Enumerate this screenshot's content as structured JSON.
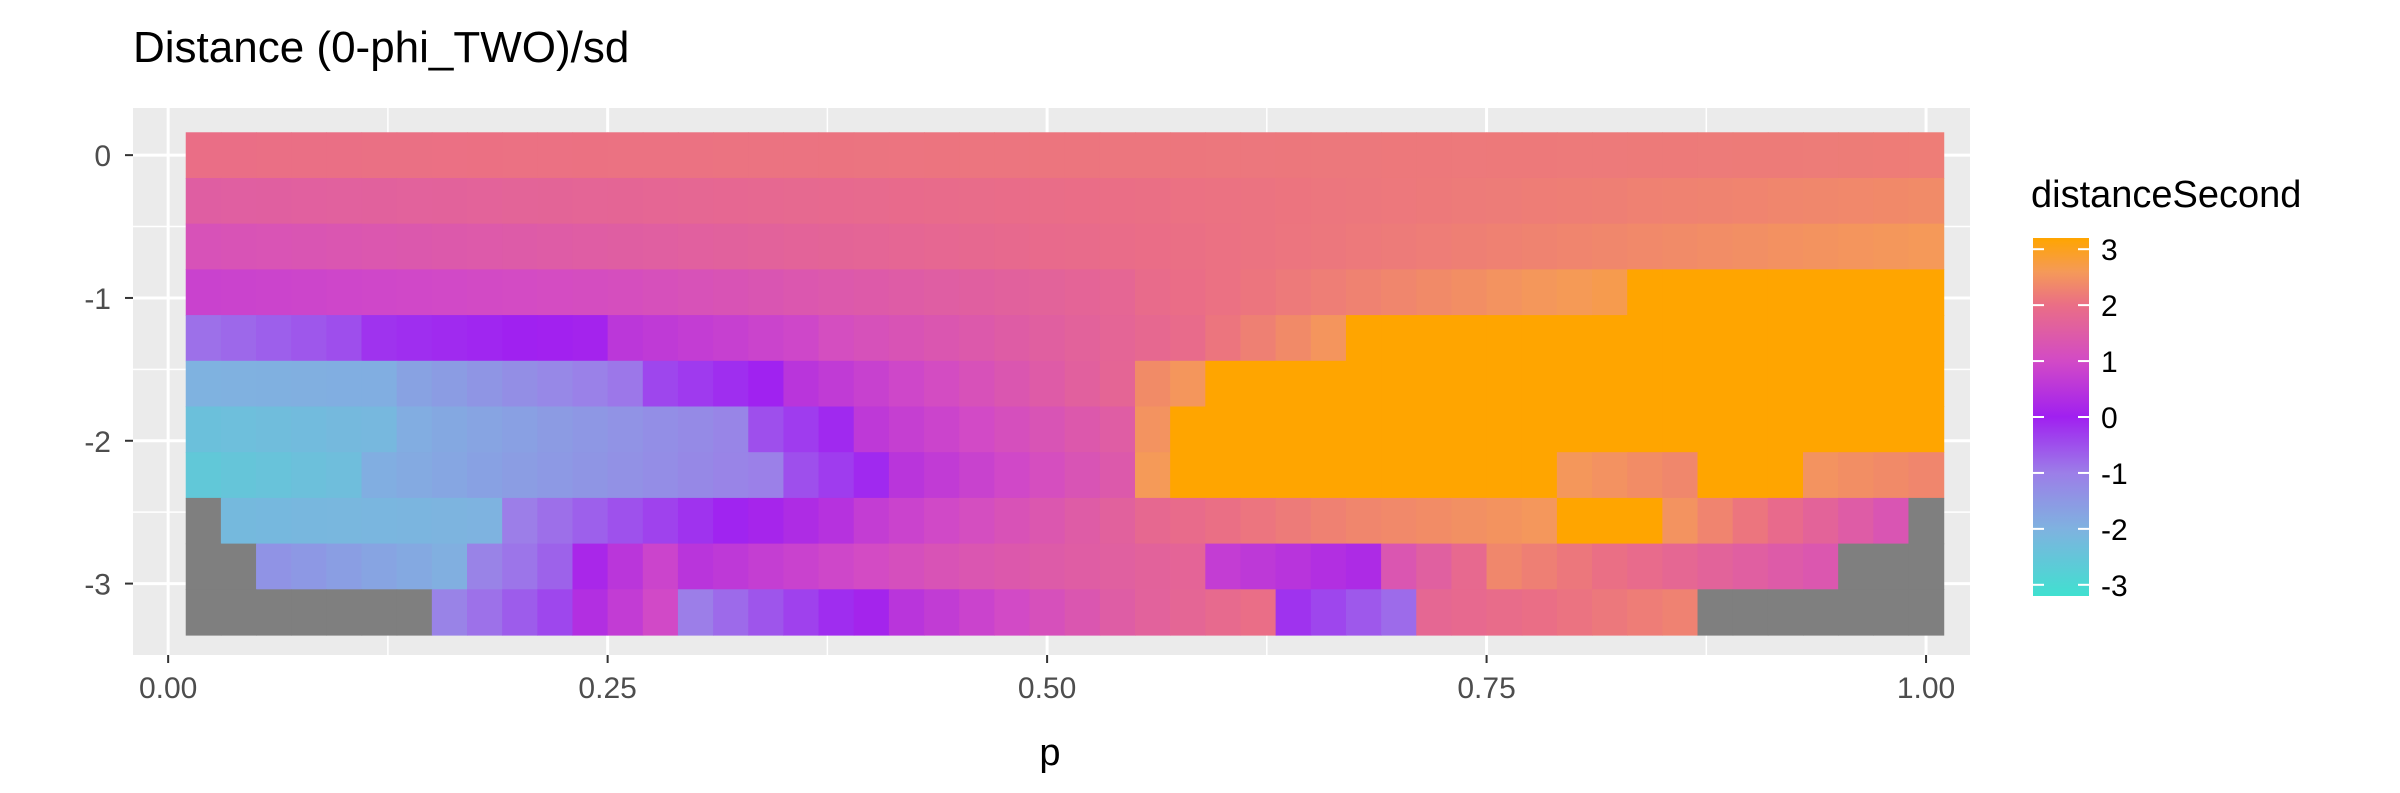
{
  "chart_data": {
    "type": "heatmap",
    "title": "Distance (0-phi_TWO)/sd",
    "xlabel": "p",
    "ylabel": "",
    "xlim": [
      -0.02,
      1.025
    ],
    "ylim": [
      -3.5,
      0.33
    ],
    "x_ticks": [
      0.0,
      0.25,
      0.5,
      0.75,
      1.0
    ],
    "x_tick_labels": [
      "0.00",
      "0.25",
      "0.50",
      "0.75",
      "1.00"
    ],
    "y_ticks": [
      0,
      -1,
      -2,
      -3
    ],
    "y_tick_labels": [
      "0",
      "-1",
      "-2",
      "-3"
    ],
    "grid": true,
    "legend": {
      "title": "distanceSecond",
      "position": "right",
      "limits": [
        -3.2,
        3.2
      ],
      "breaks": [
        3,
        2,
        1,
        0,
        -1,
        -2,
        -3
      ],
      "break_labels": [
        "3",
        "2",
        "1",
        "0",
        "-1",
        "-2",
        "-3"
      ],
      "colors": [
        {
          "v": -3.2,
          "color": "#40e0d0"
        },
        {
          "v": -2.0,
          "color": "#7fb2e0"
        },
        {
          "v": -1.0,
          "color": "#9c7ee8"
        },
        {
          "v": 0.0,
          "color": "#a020f0"
        },
        {
          "v": 1.0,
          "color": "#d24ac6"
        },
        {
          "v": 2.0,
          "color": "#ea6e86"
        },
        {
          "v": 2.6,
          "color": "#f59a58"
        },
        {
          "v": 3.2,
          "color": "#ffa500"
        }
      ],
      "na_color": "#7f7f7f"
    },
    "rows": [
      {
        "y": 0.0,
        "segments": [
          [
            0.01,
            1.01,
            2.0,
            2.2
          ]
        ]
      },
      {
        "y": -0.32,
        "segments": [
          [
            0.01,
            1.01,
            1.55,
            2.4
          ]
        ]
      },
      {
        "y": -0.64,
        "segments": [
          [
            0.01,
            0.5,
            1.2,
            1.9
          ],
          [
            0.5,
            1.01,
            1.9,
            2.6
          ]
        ]
      },
      {
        "y": -0.96,
        "segments": [
          [
            0.01,
            0.25,
            0.8,
            1.1
          ],
          [
            0.25,
            0.55,
            1.1,
            1.8
          ],
          [
            0.55,
            0.83,
            1.9,
            2.7
          ],
          [
            0.83,
            1.01,
            3.2,
            3.2
          ]
        ]
      },
      {
        "y": -1.28,
        "segments": [
          [
            0.01,
            0.12,
            -0.9,
            -0.4
          ],
          [
            0.12,
            0.25,
            -0.2,
            0.1
          ],
          [
            0.25,
            0.38,
            0.5,
            1.0
          ],
          [
            0.38,
            0.6,
            1.1,
            2.0
          ],
          [
            0.6,
            0.67,
            2.1,
            2.6
          ],
          [
            0.67,
            1.01,
            3.2,
            3.2
          ]
        ]
      },
      {
        "y": -1.6,
        "segments": [
          [
            0.01,
            0.14,
            -2.0,
            -1.9
          ],
          [
            0.14,
            0.28,
            -1.7,
            -0.8
          ],
          [
            0.28,
            0.36,
            -0.4,
            0.1
          ],
          [
            0.36,
            0.56,
            0.5,
            1.9
          ],
          [
            0.56,
            0.6,
            2.4,
            2.7
          ],
          [
            0.6,
            1.01,
            3.2,
            3.2
          ]
        ]
      },
      {
        "y": -1.92,
        "segments": [
          [
            0.01,
            0.14,
            -2.4,
            -2.1
          ],
          [
            0.14,
            0.33,
            -1.9,
            -1.1
          ],
          [
            0.33,
            0.4,
            -0.6,
            0.1
          ],
          [
            0.4,
            0.55,
            0.6,
            1.6
          ],
          [
            0.55,
            0.57,
            2.5,
            2.5
          ],
          [
            0.57,
            1.01,
            3.2,
            3.2
          ]
        ]
      },
      {
        "y": -2.24,
        "segments": [
          [
            0.01,
            0.1,
            -2.6,
            -2.3
          ],
          [
            0.1,
            0.35,
            -2.0,
            -1.0
          ],
          [
            0.35,
            0.42,
            -0.6,
            0.1
          ],
          [
            0.42,
            0.55,
            0.5,
            1.5
          ],
          [
            0.55,
            0.58,
            2.6,
            2.6
          ],
          [
            0.58,
            0.79,
            3.2,
            3.2
          ],
          [
            0.79,
            0.87,
            2.6,
            2.3
          ],
          [
            0.87,
            0.94,
            3.2,
            3.2
          ],
          [
            0.94,
            1.01,
            2.5,
            2.3
          ]
        ]
      },
      {
        "y": -2.56,
        "segments": [
          [
            0.01,
            0.03,
            null,
            null
          ],
          [
            0.03,
            0.2,
            -2.2,
            -2.0
          ],
          [
            0.2,
            0.4,
            -1.0,
            0.6
          ],
          [
            0.4,
            0.55,
            0.7,
            1.7
          ],
          [
            0.55,
            0.67,
            1.8,
            2.3
          ],
          [
            0.67,
            0.8,
            2.3,
            2.6
          ],
          [
            0.8,
            0.86,
            3.2,
            3.2
          ],
          [
            0.86,
            0.99,
            2.5,
            1.2
          ],
          [
            0.99,
            1.01,
            null,
            null
          ]
        ]
      },
      {
        "y": -2.88,
        "segments": [
          [
            0.01,
            0.06,
            null,
            null
          ],
          [
            0.06,
            0.17,
            -1.4,
            -2.0
          ],
          [
            0.17,
            0.23,
            -1.2,
            -0.6
          ],
          [
            0.23,
            0.3,
            0.0,
            1.2
          ],
          [
            0.3,
            0.45,
            0.5,
            1.3
          ],
          [
            0.45,
            0.6,
            1.3,
            1.8
          ],
          [
            0.6,
            0.69,
            0.7,
            0.2
          ],
          [
            0.69,
            0.75,
            1.2,
            2.0
          ],
          [
            0.75,
            0.95,
            2.4,
            1.3
          ],
          [
            0.95,
            1.01,
            null,
            null
          ]
        ]
      },
      {
        "y": -3.2,
        "segments": [
          [
            0.01,
            0.15,
            null,
            null
          ],
          [
            0.15,
            0.23,
            -1.2,
            -0.3
          ],
          [
            0.23,
            0.3,
            0.2,
            1.3
          ],
          [
            0.3,
            0.42,
            -1.0,
            0.3
          ],
          [
            0.42,
            0.55,
            0.5,
            1.6
          ],
          [
            0.55,
            0.64,
            1.6,
            2.1
          ],
          [
            0.64,
            0.72,
            -0.2,
            -1.0
          ],
          [
            0.72,
            0.87,
            1.8,
            2.3
          ],
          [
            0.87,
            1.01,
            null,
            null
          ]
        ]
      }
    ]
  }
}
